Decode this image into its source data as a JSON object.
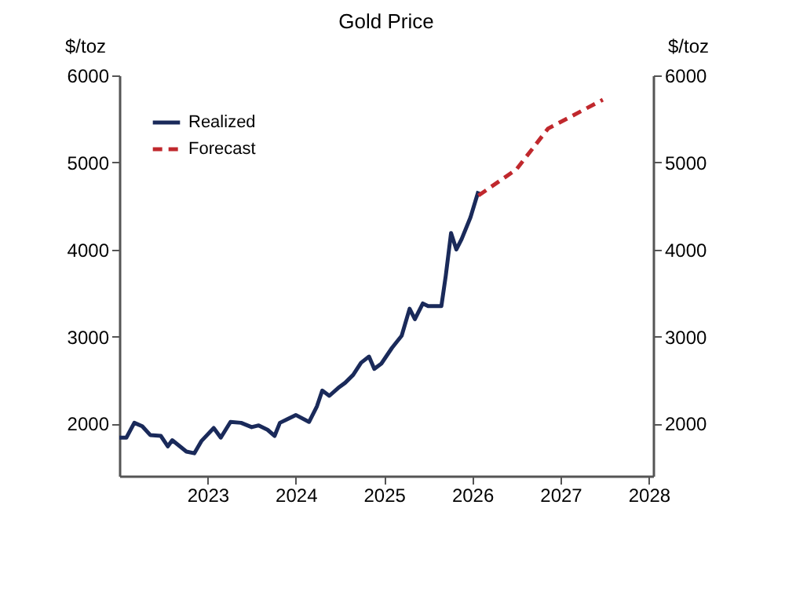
{
  "chart_data": {
    "type": "line",
    "title": "Gold Price",
    "ylabel": "$/toz",
    "y2label": "$/toz",
    "xlim": [
      2022.0,
      2028.05
    ],
    "xticks": [
      2023,
      2024,
      2025,
      2026,
      2027,
      2028
    ],
    "ylim": [
      1400,
      6000
    ],
    "yticks": [
      2000,
      3000,
      4000,
      5000,
      6000
    ],
    "y2lim": [
      1400,
      6000
    ],
    "y2ticks": [
      2000,
      3000,
      4000,
      5000,
      6000
    ],
    "grid": false,
    "legend": "top left",
    "marker": "none",
    "series": [
      {
        "name": "Realized",
        "color": "#1a2a5a",
        "line_style": "solid",
        "x": [
          2022.0,
          2022.08,
          2022.17,
          2022.26,
          2022.35,
          2022.47,
          2022.55,
          2022.6,
          2022.76,
          2022.85,
          2022.93,
          2023.07,
          2023.15,
          2023.26,
          2023.38,
          2023.5,
          2023.58,
          2023.68,
          2023.76,
          2023.82,
          2023.9,
          2024.0,
          2024.15,
          2024.24,
          2024.3,
          2024.38,
          2024.48,
          2024.56,
          2024.65,
          2024.74,
          2024.83,
          2024.89,
          2024.97,
          2025.09,
          2025.2,
          2025.29,
          2025.35,
          2025.44,
          2025.5,
          2025.65,
          2025.7,
          2025.76,
          2025.82,
          2025.88,
          2025.98,
          2026.07
        ],
        "values": [
          1840,
          1840,
          2010,
          1970,
          1870,
          1860,
          1740,
          1810,
          1680,
          1660,
          1800,
          1950,
          1840,
          2020,
          2010,
          1960,
          1980,
          1930,
          1860,
          2010,
          2050,
          2100,
          2020,
          2200,
          2380,
          2320,
          2410,
          2470,
          2560,
          2700,
          2770,
          2630,
          2690,
          2870,
          3010,
          3320,
          3200,
          3380,
          3350,
          3350,
          3700,
          4190,
          4000,
          4120,
          4370,
          4670
        ]
      },
      {
        "name": "Forecast",
        "color": "#c0282d",
        "line_style": "dashed",
        "x": [
          2026.07,
          2026.5,
          2026.86,
          2027.48
        ],
        "values": [
          4620,
          4920,
          5390,
          5720
        ]
      }
    ]
  }
}
